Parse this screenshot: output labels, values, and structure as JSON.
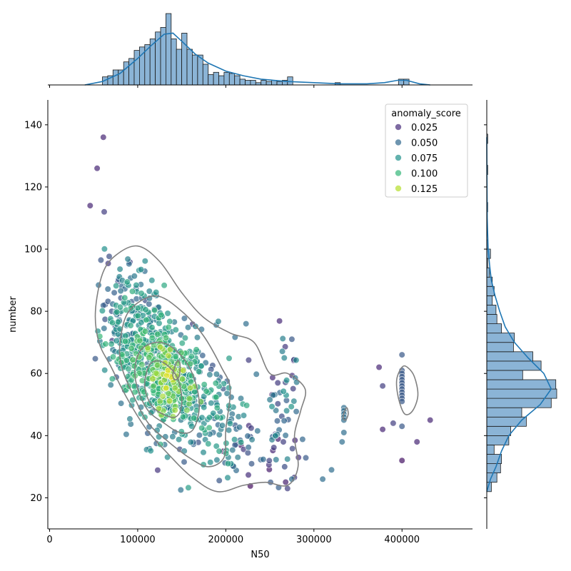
{
  "chart_data": {
    "type": "scatter",
    "subtype": "jointplot-with-kde",
    "xlabel": "N50",
    "ylabel": "number",
    "xlim": [
      -2000,
      480000
    ],
    "ylim": [
      10,
      148
    ],
    "x_ticks": [
      0,
      100000,
      200000,
      300000,
      400000
    ],
    "x_tick_labels": [
      "0",
      "100000",
      "200000",
      "300000",
      "400000"
    ],
    "y_ticks": [
      20,
      40,
      60,
      80,
      100,
      120,
      140
    ],
    "y_tick_labels": [
      "20",
      "40",
      "60",
      "80",
      "100",
      "120",
      "140"
    ],
    "grid": false,
    "hue": "anomaly_score",
    "colormap": "viridis",
    "legend": {
      "title": "anomaly_score",
      "placement": "top-right",
      "entries": [
        {
          "label": "0.025",
          "color": "#472c7a"
        },
        {
          "label": "0.050",
          "color": "#31688e"
        },
        {
          "label": "0.075",
          "color": "#21918c"
        },
        {
          "label": "0.100",
          "color": "#35b779"
        },
        {
          "label": "0.125",
          "color": "#b5de2b"
        }
      ]
    },
    "point_color_scale": [
      "#440154",
      "#472c7a",
      "#31688e",
      "#21918c",
      "#35b779",
      "#90d743",
      "#fde725"
    ],
    "point_clusters": [
      {
        "x": 120000,
        "y": 62,
        "sx": 28000,
        "sy": 10,
        "rho": -0.45,
        "n": 520,
        "score": 0.085
      },
      {
        "x": 135000,
        "y": 58,
        "sx": 14000,
        "sy": 6,
        "rho": -0.3,
        "n": 130,
        "score": 0.115
      },
      {
        "x": 180000,
        "y": 48,
        "sx": 35000,
        "sy": 11,
        "rho": -0.2,
        "n": 160,
        "score": 0.07
      },
      {
        "x": 90000,
        "y": 82,
        "sx": 18000,
        "sy": 9,
        "rho": -0.2,
        "n": 110,
        "score": 0.065
      },
      {
        "x": 250000,
        "y": 38,
        "sx": 20000,
        "sy": 8,
        "rho": 0,
        "n": 50,
        "score": 0.045
      },
      {
        "x": 265000,
        "y": 52,
        "sx": 12000,
        "sy": 12,
        "rho": 0,
        "n": 30,
        "score": 0.055
      }
    ],
    "outlier_points": [
      {
        "x": 61000,
        "y": 136,
        "score": 0.02
      },
      {
        "x": 54000,
        "y": 126,
        "score": 0.02
      },
      {
        "x": 46000,
        "y": 114,
        "score": 0.02
      },
      {
        "x": 62000,
        "y": 112,
        "score": 0.03
      },
      {
        "x": 400000,
        "y": 66,
        "score": 0.04
      },
      {
        "x": 400000,
        "y": 61,
        "score": 0.04
      },
      {
        "x": 400000,
        "y": 60,
        "score": 0.04
      },
      {
        "x": 400000,
        "y": 59,
        "score": 0.04
      },
      {
        "x": 400000,
        "y": 58,
        "score": 0.04
      },
      {
        "x": 400000,
        "y": 57,
        "score": 0.04
      },
      {
        "x": 400000,
        "y": 56,
        "score": 0.04
      },
      {
        "x": 400000,
        "y": 55,
        "score": 0.04
      },
      {
        "x": 400000,
        "y": 54,
        "score": 0.04
      },
      {
        "x": 400000,
        "y": 53,
        "score": 0.04
      },
      {
        "x": 400000,
        "y": 52,
        "score": 0.04
      },
      {
        "x": 400000,
        "y": 51,
        "score": 0.04
      },
      {
        "x": 400000,
        "y": 43,
        "score": 0.04
      },
      {
        "x": 400000,
        "y": 32,
        "score": 0.01
      },
      {
        "x": 374000,
        "y": 62,
        "score": 0.02
      },
      {
        "x": 378000,
        "y": 56,
        "score": 0.03
      },
      {
        "x": 378000,
        "y": 42,
        "score": 0.02
      },
      {
        "x": 390000,
        "y": 44,
        "score": 0.03
      },
      {
        "x": 417000,
        "y": 38,
        "score": 0.02
      },
      {
        "x": 432000,
        "y": 45,
        "score": 0.02
      },
      {
        "x": 334000,
        "y": 49,
        "score": 0.05
      },
      {
        "x": 334000,
        "y": 48,
        "score": 0.05
      },
      {
        "x": 334000,
        "y": 47,
        "score": 0.05
      },
      {
        "x": 334000,
        "y": 46,
        "score": 0.05
      },
      {
        "x": 334000,
        "y": 45,
        "score": 0.05
      },
      {
        "x": 334000,
        "y": 41,
        "score": 0.05
      },
      {
        "x": 332000,
        "y": 38,
        "score": 0.05
      },
      {
        "x": 320000,
        "y": 29,
        "score": 0.05
      },
      {
        "x": 310000,
        "y": 26,
        "score": 0.05
      },
      {
        "x": 275000,
        "y": 71,
        "score": 0.04
      },
      {
        "x": 223000,
        "y": 76,
        "score": 0.05
      },
      {
        "x": 275000,
        "y": 26,
        "score": 0.05
      },
      {
        "x": 270000,
        "y": 23,
        "score": 0.03
      }
    ],
    "kde_contours": [
      {
        "cx": 150000,
        "cy": 60,
        "rx": 110000,
        "ry": 24,
        "rot": -0.62,
        "pts": [
          [
            75,
            98
          ],
          [
            60,
            92
          ],
          [
            52,
            80
          ],
          [
            56,
            70
          ],
          [
            70,
            62
          ],
          [
            88,
            52
          ],
          [
            110,
            42
          ],
          [
            135,
            34
          ],
          [
            160,
            27
          ],
          [
            190,
            22
          ],
          [
            220,
            24
          ],
          [
            245,
            25
          ],
          [
            270,
            24
          ],
          [
            282,
            30
          ],
          [
            278,
            40
          ],
          [
            285,
            48
          ],
          [
            290,
            55
          ],
          [
            270,
            60
          ],
          [
            250,
            60
          ],
          [
            232,
            70
          ],
          [
            205,
            73
          ],
          [
            175,
            78
          ],
          [
            150,
            86
          ],
          [
            125,
            96
          ],
          [
            100,
            101
          ]
        ]
      },
      {
        "pts": [
          [
            90,
            80
          ],
          [
            80,
            70
          ],
          [
            82,
            62
          ],
          [
            95,
            53
          ],
          [
            112,
            44
          ],
          [
            135,
            38
          ],
          [
            158,
            33
          ],
          [
            180,
            30
          ],
          [
            198,
            33
          ],
          [
            200,
            42
          ],
          [
            205,
            55
          ],
          [
            195,
            62
          ],
          [
            175,
            72
          ],
          [
            150,
            80
          ],
          [
            120,
            85
          ]
        ]
      },
      {
        "pts": [
          [
            105,
            68
          ],
          [
            97,
            62
          ],
          [
            100,
            55
          ],
          [
            112,
            48
          ],
          [
            130,
            44
          ],
          [
            148,
            41
          ],
          [
            163,
            42
          ],
          [
            170,
            50
          ],
          [
            162,
            60
          ],
          [
            145,
            67
          ],
          [
            125,
            70
          ]
        ]
      },
      {
        "pts": [
          [
            112,
            62
          ],
          [
            108,
            56
          ],
          [
            115,
            50
          ],
          [
            128,
            47
          ],
          [
            143,
            46
          ],
          [
            150,
            50
          ],
          [
            146,
            58
          ],
          [
            132,
            63
          ],
          [
            120,
            64
          ]
        ]
      },
      {
        "pts": [
          [
            145,
            64
          ],
          [
            140,
            60
          ],
          [
            142,
            58
          ],
          [
            147,
            59
          ],
          [
            148,
            63
          ]
        ]
      },
      {
        "pts": [
          [
            337,
            49
          ],
          [
            333,
            46
          ],
          [
            336,
            45
          ],
          [
            339,
            47
          ]
        ]
      },
      {
        "pts": [
          [
            400,
            62
          ],
          [
            394,
            58
          ],
          [
            396,
            52
          ],
          [
            403,
            47
          ],
          [
            412,
            48
          ],
          [
            418,
            53
          ],
          [
            414,
            59
          ],
          [
            406,
            62
          ]
        ]
      }
    ],
    "top_marginal": {
      "type": "histogram+kde",
      "variable": "N50",
      "bins": [
        {
          "x0": 60000,
          "x1": 66000,
          "c": 7
        },
        {
          "x0": 66000,
          "x1": 72000,
          "c": 8
        },
        {
          "x0": 72000,
          "x1": 78000,
          "c": 13
        },
        {
          "x0": 78000,
          "x1": 84000,
          "c": 13
        },
        {
          "x0": 84000,
          "x1": 90000,
          "c": 20
        },
        {
          "x0": 90000,
          "x1": 96000,
          "c": 23
        },
        {
          "x0": 96000,
          "x1": 102000,
          "c": 30
        },
        {
          "x0": 102000,
          "x1": 108000,
          "c": 33
        },
        {
          "x0": 108000,
          "x1": 114000,
          "c": 35
        },
        {
          "x0": 114000,
          "x1": 120000,
          "c": 40
        },
        {
          "x0": 120000,
          "x1": 126000,
          "c": 46
        },
        {
          "x0": 126000,
          "x1": 132000,
          "c": 50
        },
        {
          "x0": 132000,
          "x1": 138000,
          "c": 62
        },
        {
          "x0": 138000,
          "x1": 144000,
          "c": 40
        },
        {
          "x0": 144000,
          "x1": 150000,
          "c": 31
        },
        {
          "x0": 150000,
          "x1": 156000,
          "c": 45
        },
        {
          "x0": 156000,
          "x1": 162000,
          "c": 31
        },
        {
          "x0": 162000,
          "x1": 168000,
          "c": 26
        },
        {
          "x0": 168000,
          "x1": 174000,
          "c": 26
        },
        {
          "x0": 174000,
          "x1": 180000,
          "c": 18
        },
        {
          "x0": 180000,
          "x1": 186000,
          "c": 9
        },
        {
          "x0": 186000,
          "x1": 192000,
          "c": 11
        },
        {
          "x0": 192000,
          "x1": 198000,
          "c": 8
        },
        {
          "x0": 198000,
          "x1": 204000,
          "c": 11
        },
        {
          "x0": 204000,
          "x1": 210000,
          "c": 10
        },
        {
          "x0": 210000,
          "x1": 216000,
          "c": 8
        },
        {
          "x0": 216000,
          "x1": 222000,
          "c": 5
        },
        {
          "x0": 222000,
          "x1": 228000,
          "c": 4
        },
        {
          "x0": 228000,
          "x1": 234000,
          "c": 4
        },
        {
          "x0": 234000,
          "x1": 240000,
          "c": 2
        },
        {
          "x0": 240000,
          "x1": 246000,
          "c": 4
        },
        {
          "x0": 246000,
          "x1": 252000,
          "c": 3
        },
        {
          "x0": 252000,
          "x1": 258000,
          "c": 4
        },
        {
          "x0": 258000,
          "x1": 264000,
          "c": 3
        },
        {
          "x0": 264000,
          "x1": 270000,
          "c": 4
        },
        {
          "x0": 270000,
          "x1": 276000,
          "c": 7
        },
        {
          "x0": 324000,
          "x1": 330000,
          "c": 2
        },
        {
          "x0": 396000,
          "x1": 402000,
          "c": 5
        },
        {
          "x0": 402000,
          "x1": 408000,
          "c": 5
        }
      ],
      "kde_x": [
        40000,
        60000,
        80000,
        100000,
        115000,
        130000,
        140000,
        150000,
        165000,
        180000,
        200000,
        220000,
        240000,
        270000,
        300000,
        330000,
        360000,
        380000,
        395000,
        405000,
        420000,
        432000
      ],
      "kde_y": [
        0,
        3,
        10,
        23,
        34,
        44,
        45,
        38,
        27,
        19,
        12,
        8,
        5,
        3,
        2,
        1,
        1,
        2,
        4,
        4,
        1,
        0
      ]
    },
    "right_marginal": {
      "type": "histogram+kde",
      "variable": "number",
      "bins": [
        {
          "y0": 22,
          "y1": 25,
          "c": 5
        },
        {
          "y0": 25,
          "y1": 28,
          "c": 11
        },
        {
          "y0": 28,
          "y1": 31,
          "c": 15
        },
        {
          "y0": 31,
          "y1": 34,
          "c": 16
        },
        {
          "y0": 34,
          "y1": 37,
          "c": 8
        },
        {
          "y0": 37,
          "y1": 40,
          "c": 24
        },
        {
          "y0": 40,
          "y1": 43,
          "c": 26
        },
        {
          "y0": 43,
          "y1": 46,
          "c": 43
        },
        {
          "y0": 46,
          "y1": 49,
          "c": 38
        },
        {
          "y0": 49,
          "y1": 52,
          "c": 70
        },
        {
          "y0": 52,
          "y1": 55,
          "c": 76
        },
        {
          "y0": 55,
          "y1": 58,
          "c": 75
        },
        {
          "y0": 58,
          "y1": 61,
          "c": 39
        },
        {
          "y0": 61,
          "y1": 64,
          "c": 59
        },
        {
          "y0": 64,
          "y1": 67,
          "c": 50
        },
        {
          "y0": 67,
          "y1": 70,
          "c": 29
        },
        {
          "y0": 70,
          "y1": 73,
          "c": 30
        },
        {
          "y0": 73,
          "y1": 76,
          "c": 16
        },
        {
          "y0": 76,
          "y1": 79,
          "c": 11
        },
        {
          "y0": 79,
          "y1": 82,
          "c": 10
        },
        {
          "y0": 82,
          "y1": 85,
          "c": 6
        },
        {
          "y0": 85,
          "y1": 88,
          "c": 8
        },
        {
          "y0": 88,
          "y1": 91,
          "c": 6
        },
        {
          "y0": 91,
          "y1": 94,
          "c": 3
        },
        {
          "y0": 94,
          "y1": 97,
          "c": 1
        },
        {
          "y0": 97,
          "y1": 100,
          "c": 4
        },
        {
          "y0": 100,
          "y1": 103,
          "c": 1
        },
        {
          "y0": 112,
          "y1": 115,
          "c": 1
        },
        {
          "y0": 124,
          "y1": 127,
          "c": 1
        },
        {
          "y0": 134,
          "y1": 137,
          "c": 1
        }
      ],
      "kde_y": [
        22,
        26,
        30,
        35,
        40,
        45,
        50,
        55,
        60,
        65,
        70,
        75,
        80,
        85,
        90,
        95,
        100,
        110,
        120,
        136
      ],
      "kde_x": [
        0,
        4,
        10,
        16,
        24,
        38,
        58,
        70,
        62,
        45,
        30,
        20,
        14,
        9,
        5,
        3,
        1.5,
        0.5,
        0.2,
        0
      ]
    }
  }
}
